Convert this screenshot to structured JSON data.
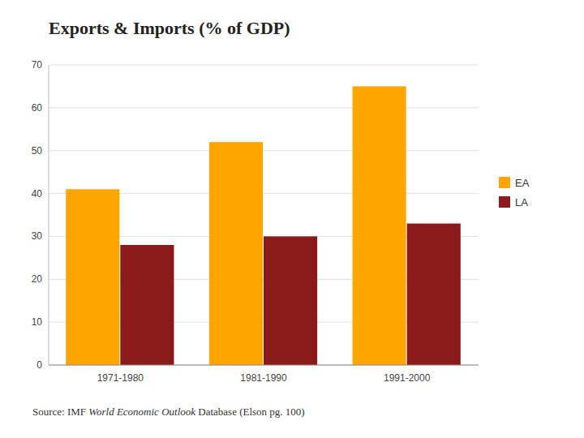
{
  "chart_data": {
    "type": "bar",
    "title": "Exports & Imports (% of GDP)",
    "categories": [
      "1971-1980",
      "1981-1990",
      "1991-2000"
    ],
    "series": [
      {
        "name": "EA",
        "color": "#FFA500",
        "values": [
          41,
          52,
          65
        ]
      },
      {
        "name": "LA",
        "color": "#8B1A1A",
        "values": [
          28,
          30,
          33
        ]
      }
    ],
    "ylim": [
      0,
      70
    ],
    "yticks": [
      0,
      10,
      20,
      30,
      40,
      50,
      60,
      70
    ],
    "grid": true,
    "legend": "right",
    "annotations": [
      "Source: IMF ",
      "World Economic Outlook",
      " Database (Elson pg. 100)"
    ]
  }
}
